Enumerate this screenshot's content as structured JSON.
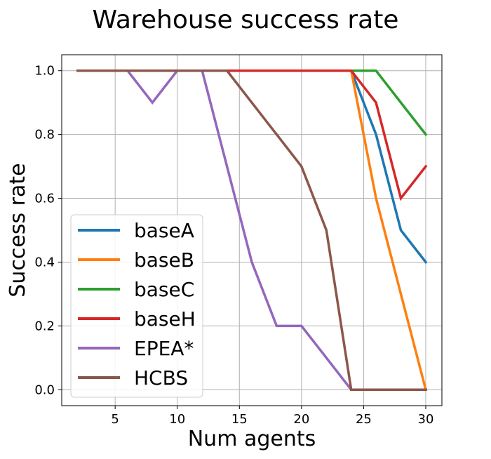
{
  "chart_data": {
    "type": "line",
    "title": "Warehouse success rate",
    "xlabel": "Num agents",
    "ylabel": "Success rate",
    "xlim": [
      0.7,
      31.3
    ],
    "ylim": [
      -0.05,
      1.05
    ],
    "xticks": [
      5,
      10,
      15,
      20,
      25,
      30
    ],
    "yticks": [
      0.0,
      0.2,
      0.4,
      0.6,
      0.8,
      1.0
    ],
    "xtick_labels": [
      "5",
      "10",
      "15",
      "20",
      "25",
      "30"
    ],
    "ytick_labels": [
      "0.0",
      "0.2",
      "0.4",
      "0.6",
      "0.8",
      "1.0"
    ],
    "grid": true,
    "legend_position": "lower-left",
    "x": [
      2,
      4,
      6,
      8,
      10,
      12,
      14,
      16,
      18,
      20,
      22,
      24,
      26,
      28,
      30
    ],
    "series": [
      {
        "name": "baseA",
        "color": "#1f77b4",
        "values": [
          1,
          1,
          1,
          1,
          1,
          1,
          1,
          1,
          1,
          1,
          1,
          1,
          0.8,
          0.5,
          0.4
        ]
      },
      {
        "name": "baseB",
        "color": "#ff7f0e",
        "values": [
          1,
          1,
          1,
          1,
          1,
          1,
          1,
          1,
          1,
          1,
          1,
          1,
          0.6,
          0.3,
          0.0
        ]
      },
      {
        "name": "baseC",
        "color": "#2ca02c",
        "values": [
          1,
          1,
          1,
          1,
          1,
          1,
          1,
          1,
          1,
          1,
          1,
          1,
          1.0,
          0.9,
          0.8
        ]
      },
      {
        "name": "baseH",
        "color": "#d62728",
        "values": [
          1,
          1,
          1,
          1,
          1,
          1,
          1,
          1,
          1,
          1,
          1,
          1,
          0.9,
          0.6,
          0.7
        ]
      },
      {
        "name": "EPEA*",
        "color": "#9467bd",
        "values": [
          1,
          1,
          1,
          0.9,
          1,
          1,
          0.7,
          0.4,
          0.2,
          0.2,
          0.1,
          0.0,
          0.0,
          0.0,
          0.0
        ]
      },
      {
        "name": "HCBS",
        "color": "#8c564b",
        "values": [
          1,
          1,
          1,
          1,
          1,
          1,
          1,
          0.9,
          0.8,
          0.7,
          0.5,
          0.0,
          0.0,
          0.0,
          0.0
        ]
      }
    ]
  }
}
